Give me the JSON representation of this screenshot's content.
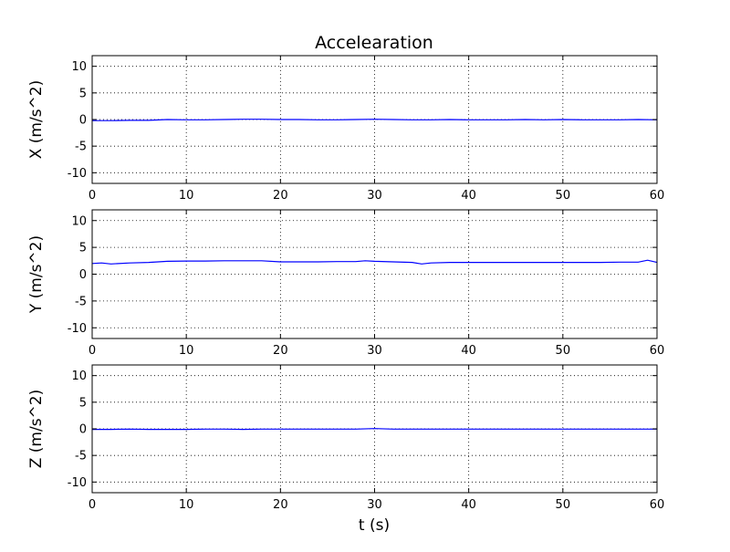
{
  "figure": {
    "title": "Accelearation",
    "xlabel": "t (s)"
  },
  "chart_data": [
    {
      "type": "line",
      "ylabel": "X (m/s^2)",
      "xlim": [
        0,
        60
      ],
      "ylim": [
        -12,
        12
      ],
      "xticks": [
        0,
        10,
        20,
        30,
        40,
        50,
        60
      ],
      "yticks": [
        -10,
        -5,
        0,
        5,
        10
      ],
      "grid": true,
      "series_color": "#0000ff",
      "x": [
        0,
        2,
        4,
        6,
        8,
        10,
        12,
        14,
        16,
        18,
        20,
        22,
        24,
        26,
        28,
        30,
        32,
        34,
        36,
        38,
        40,
        42,
        44,
        46,
        48,
        50,
        52,
        54,
        56,
        58,
        60
      ],
      "y": [
        -0.2,
        -0.2,
        -0.15,
        -0.15,
        0,
        -0.05,
        -0.05,
        0,
        0.05,
        0.05,
        0,
        0,
        -0.05,
        -0.05,
        0,
        0.05,
        0,
        -0.05,
        -0.05,
        0,
        -0.05,
        -0.05,
        -0.05,
        0,
        -0.05,
        0,
        -0.05,
        -0.05,
        -0.05,
        0,
        -0.05
      ]
    },
    {
      "type": "line",
      "ylabel": "Y (m/s^2)",
      "xlim": [
        0,
        60
      ],
      "ylim": [
        -12,
        12
      ],
      "xticks": [
        0,
        10,
        20,
        30,
        40,
        50,
        60
      ],
      "yticks": [
        -10,
        -5,
        0,
        5,
        10
      ],
      "grid": true,
      "series_color": "#0000ff",
      "x": [
        0,
        1,
        2,
        4,
        6,
        8,
        10,
        12,
        14,
        16,
        18,
        20,
        22,
        24,
        26,
        28,
        29,
        30,
        32,
        34,
        35,
        36,
        38,
        40,
        42,
        44,
        46,
        48,
        50,
        52,
        54,
        56,
        58,
        59,
        60
      ],
      "y": [
        2.0,
        2.1,
        1.9,
        2.1,
        2.2,
        2.4,
        2.45,
        2.45,
        2.5,
        2.5,
        2.5,
        2.3,
        2.3,
        2.3,
        2.35,
        2.35,
        2.5,
        2.4,
        2.3,
        2.2,
        1.9,
        2.1,
        2.2,
        2.2,
        2.2,
        2.2,
        2.2,
        2.2,
        2.2,
        2.2,
        2.2,
        2.25,
        2.25,
        2.6,
        2.2
      ]
    },
    {
      "type": "line",
      "ylabel": "Z (m/s^2)",
      "xlim": [
        0,
        60
      ],
      "ylim": [
        -12,
        12
      ],
      "xticks": [
        0,
        10,
        20,
        30,
        40,
        50,
        60
      ],
      "yticks": [
        -10,
        -5,
        0,
        5,
        10
      ],
      "grid": true,
      "series_color": "#0000ff",
      "x": [
        0,
        2,
        4,
        6,
        8,
        10,
        12,
        14,
        16,
        18,
        20,
        22,
        24,
        26,
        28,
        30,
        32,
        34,
        36,
        38,
        40,
        42,
        44,
        46,
        48,
        50,
        52,
        54,
        56,
        58,
        60
      ],
      "y": [
        -0.1,
        -0.1,
        -0.05,
        -0.1,
        -0.1,
        -0.1,
        -0.05,
        -0.05,
        -0.1,
        -0.05,
        -0.05,
        -0.05,
        -0.05,
        -0.05,
        -0.05,
        0.05,
        -0.05,
        -0.05,
        -0.05,
        -0.05,
        -0.05,
        -0.05,
        -0.05,
        -0.05,
        -0.05,
        -0.05,
        -0.05,
        -0.05,
        -0.05,
        -0.05,
        -0.05
      ]
    }
  ]
}
